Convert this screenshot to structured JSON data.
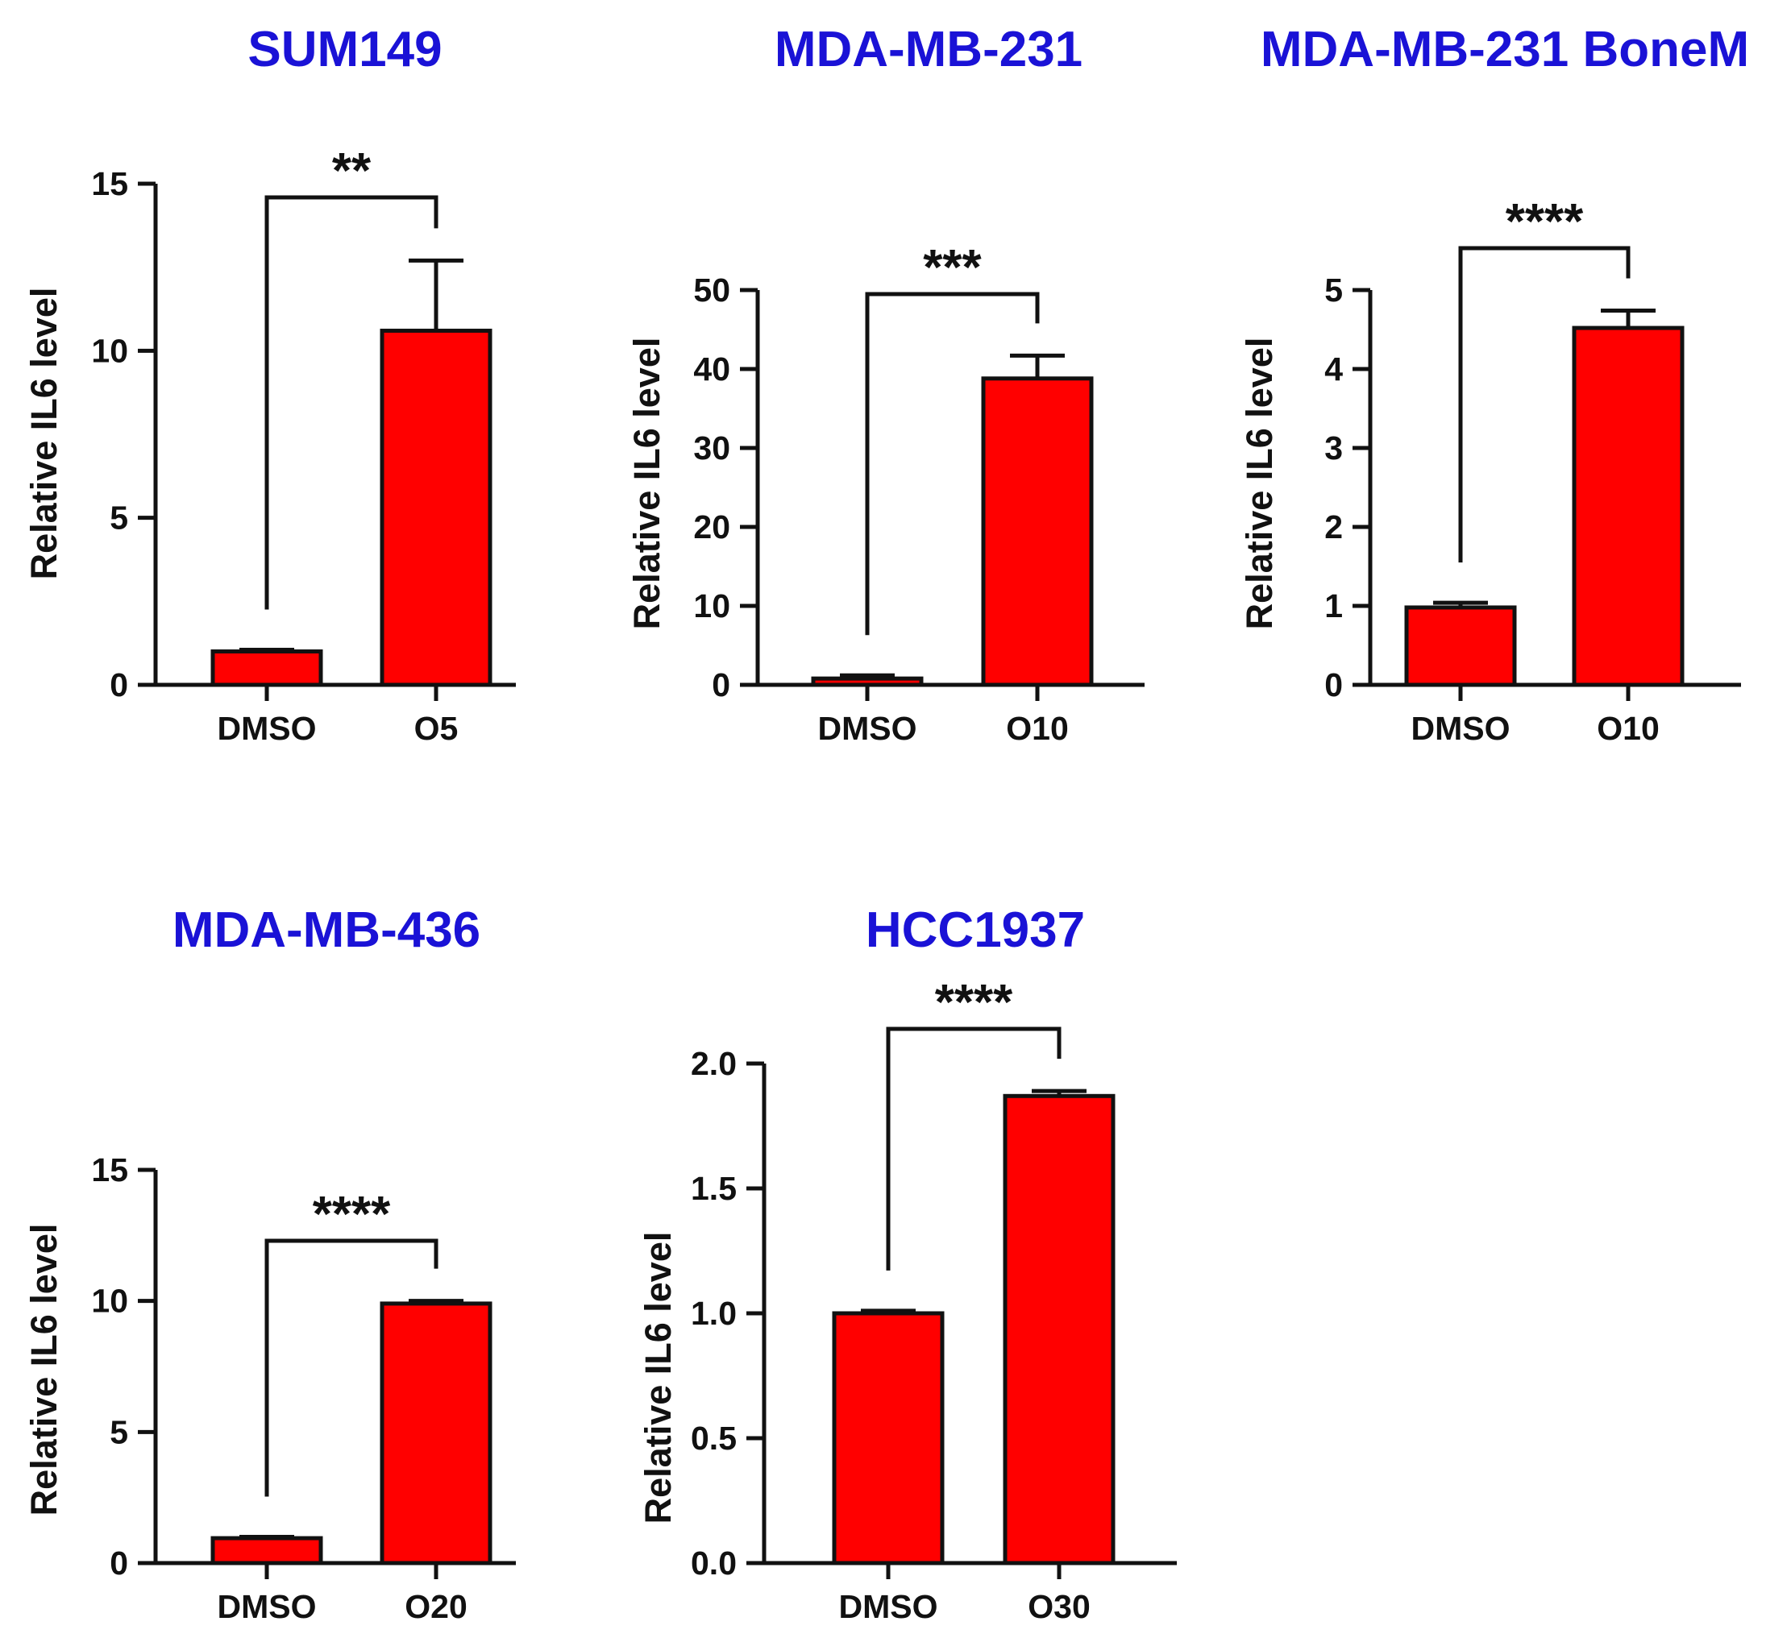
{
  "colors": {
    "title": "#1a12d6",
    "bar_fill": "#ff0000",
    "stroke": "#111111"
  },
  "chart_data": [
    {
      "type": "bar",
      "title": "SUM149",
      "ylabel": "Relative IL6 level",
      "xlabel": "",
      "categories": [
        "DMSO",
        "O5"
      ],
      "values": [
        1.0,
        10.6
      ],
      "errors": [
        0.05,
        2.1
      ],
      "ylim": [
        0,
        15
      ],
      "yticks": [
        0,
        5,
        10,
        15
      ],
      "ytick_labels": [
        "0",
        "5",
        "10",
        "15"
      ],
      "significance": "**"
    },
    {
      "type": "bar",
      "title": "MDA-MB-231",
      "ylabel": "Relative IL6 level",
      "xlabel": "",
      "categories": [
        "DMSO",
        "O10"
      ],
      "values": [
        0.8,
        38.8
      ],
      "errors": [
        0.4,
        2.9
      ],
      "ylim": [
        0,
        50
      ],
      "yticks": [
        0,
        10,
        20,
        30,
        40,
        50
      ],
      "ytick_labels": [
        "0",
        "10",
        "20",
        "30",
        "40",
        "50"
      ],
      "significance": "***"
    },
    {
      "type": "bar",
      "title": "MDA-MB-231 BoneM",
      "ylabel": "Relative IL6 level",
      "xlabel": "",
      "categories": [
        "DMSO",
        "O10"
      ],
      "values": [
        0.98,
        4.52
      ],
      "errors": [
        0.06,
        0.22
      ],
      "ylim": [
        0,
        5
      ],
      "yticks": [
        0,
        1,
        2,
        3,
        4,
        5
      ],
      "ytick_labels": [
        "0",
        "1",
        "2",
        "3",
        "4",
        "5"
      ],
      "significance": "****"
    },
    {
      "type": "bar",
      "title": "MDA-MB-436",
      "ylabel": "Relative IL6 level",
      "xlabel": "",
      "categories": [
        "DMSO",
        "O20"
      ],
      "values": [
        0.95,
        9.9
      ],
      "errors": [
        0.05,
        0.1
      ],
      "ylim": [
        0,
        15
      ],
      "yticks": [
        0,
        5,
        10,
        15
      ],
      "ytick_labels": [
        "0",
        "5",
        "10",
        "15"
      ],
      "significance": "****"
    },
    {
      "type": "bar",
      "title": "HCC1937",
      "ylabel": "Relative IL6 level",
      "xlabel": "",
      "categories": [
        "DMSO",
        "O30"
      ],
      "values": [
        1.0,
        1.87
      ],
      "errors": [
        0.01,
        0.02
      ],
      "ylim": [
        0,
        2.0
      ],
      "yticks": [
        0,
        0.5,
        1.0,
        1.5,
        2.0
      ],
      "ytick_labels": [
        "0.0",
        "0.5",
        "1.0",
        "1.5",
        "2.0"
      ],
      "significance": "****"
    }
  ]
}
